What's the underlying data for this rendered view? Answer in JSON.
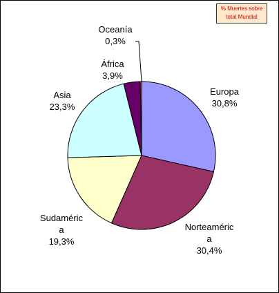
{
  "chart_data": {
    "type": "pie",
    "legend_text": [
      "% Muertes sobre",
      "total Mundial"
    ],
    "categories": [
      "Europa",
      "Norteaméric\na",
      "Sudaméric\na",
      "Asia",
      "África",
      "Oceanía"
    ],
    "values": [
      30.8,
      30.4,
      19.3,
      23.3,
      3.9,
      0.3
    ],
    "value_labels": [
      "30,8%",
      "30,4%",
      "19,3%",
      "23,3%",
      "3,9%",
      "0,3%"
    ],
    "colors": [
      "#9999FF",
      "#993366",
      "#FFFFCC",
      "#CCFFFF",
      "#660066",
      "#FF8080"
    ]
  }
}
